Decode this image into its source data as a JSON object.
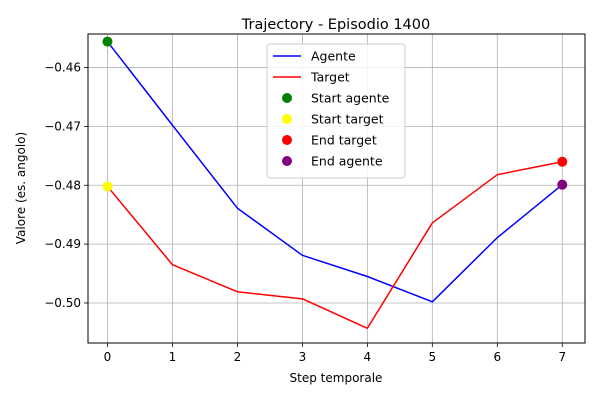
{
  "chart_data": {
    "type": "line",
    "title": "Trajectory - Episodio 1400",
    "xlabel": "Step temporale",
    "ylabel": "Valore (es. angolo)",
    "xlim": [
      -0.3,
      7.35
    ],
    "ylim": [
      -0.5068,
      -0.4543
    ],
    "xticks": [
      "0",
      "1",
      "2",
      "3",
      "4",
      "5",
      "6",
      "7"
    ],
    "xtick_values": [
      0,
      1,
      2,
      3,
      4,
      5,
      6,
      7
    ],
    "yticks": [
      "−0.46",
      "−0.47",
      "−0.48",
      "−0.49",
      "−0.50"
    ],
    "ytick_values": [
      -0.46,
      -0.47,
      -0.48,
      -0.49,
      -0.5
    ],
    "grid": true,
    "legend_position": "top-center",
    "x": [
      0,
      1,
      2,
      3,
      4,
      5,
      6,
      7
    ],
    "series": [
      {
        "name": "Agente",
        "color": "#0000ff",
        "values": [
          -0.4556,
          -0.4698,
          -0.4839,
          -0.4919,
          -0.4955,
          -0.4998,
          -0.4889,
          -0.4799
        ]
      },
      {
        "name": "Target",
        "color": "#ff0000",
        "values": [
          -0.4802,
          -0.4935,
          -0.4981,
          -0.4993,
          -0.5043,
          -0.4864,
          -0.4782,
          -0.476
        ]
      }
    ],
    "points": [
      {
        "name": "Start agente",
        "color": "#008000",
        "x": 0,
        "y": -0.4556
      },
      {
        "name": "Start target",
        "color": "#ffff00",
        "x": 0,
        "y": -0.4802
      },
      {
        "name": "End target",
        "color": "#ff0000",
        "x": 7,
        "y": -0.476
      },
      {
        "name": "End agente",
        "color": "#800080",
        "x": 7,
        "y": -0.4799
      }
    ]
  }
}
